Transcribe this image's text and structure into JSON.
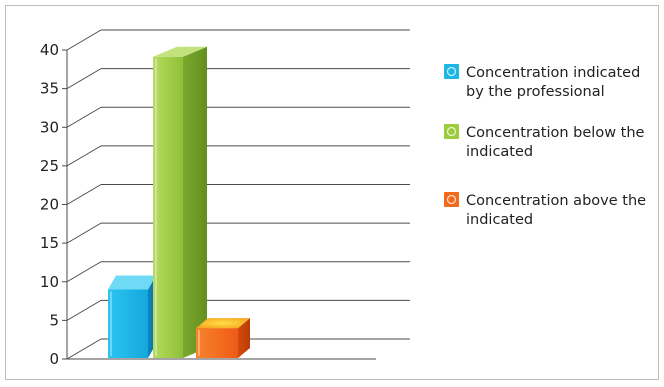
{
  "chart_data": {
    "type": "bar",
    "categories": [
      "Concentration indicated by the professional",
      "Concentration below the indicated",
      "Concentration above the indicated"
    ],
    "values": [
      9,
      39,
      4
    ],
    "ylim": [
      0,
      40
    ],
    "yticks": [
      0,
      5,
      10,
      15,
      20,
      25,
      30,
      35,
      40
    ],
    "grid": true,
    "legend_position": "right",
    "colors": [
      "#1eb6e6",
      "#9ccc3c",
      "#f26a1b"
    ],
    "legend": [
      {
        "lines": [
          "Concentration indicated",
          "by the professional"
        ],
        "color": "#1eb6e6"
      },
      {
        "lines": [
          "Concentration below the",
          "indicated"
        ],
        "color": "#9ccc3c"
      },
      {
        "lines": [
          "Concentration above the",
          "indicated"
        ],
        "color": "#f26a1b"
      }
    ]
  }
}
